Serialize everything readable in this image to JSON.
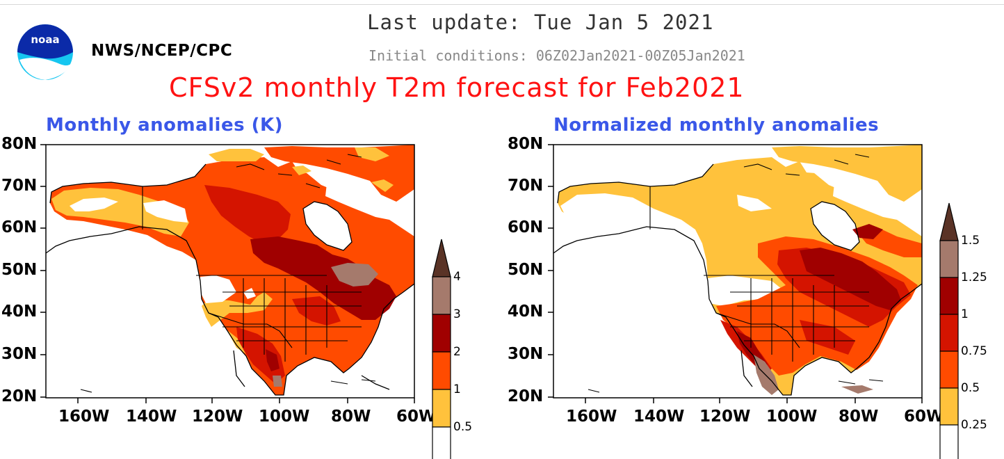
{
  "header": {
    "agency": "NWS/NCEP/CPC",
    "logo_text": "noaa",
    "last_update": "Last update: Tue Jan 5 2021",
    "initial_conditions": "Initial conditions: 06Z02Jan2021-00Z05Jan2021",
    "title": "CFSv2 monthly T2m forecast for Feb2021"
  },
  "panels": [
    {
      "subtitle": "Monthly anomalies (K)",
      "lat_labels": [
        "80N",
        "70N",
        "60N",
        "50N",
        "40N",
        "30N",
        "20N"
      ],
      "lon_labels": [
        "160W",
        "140W",
        "120W",
        "100W",
        "80W",
        "60W"
      ],
      "colorbar_labels": [
        "0.5",
        "1",
        "2",
        "3",
        "4"
      ]
    },
    {
      "subtitle": "Normalized monthly anomalies",
      "lat_labels": [
        "80N",
        "70N",
        "60N",
        "50N",
        "40N",
        "30N",
        "20N"
      ],
      "lon_labels": [
        "160W",
        "140W",
        "120W",
        "100W",
        "80W",
        "60W"
      ],
      "colorbar_labels": [
        "0.25",
        "0.5",
        "0.75",
        "1",
        "1.25",
        "1.5"
      ]
    }
  ],
  "colors": {
    "white": "#ffffff",
    "yellow": "#ffc23c",
    "orange": "#ff4b00",
    "red": "#d41400",
    "darkred": "#a00000",
    "mauve": "#a57a6c",
    "brown": "#5a3326",
    "title_red": "#ff1212",
    "subtitle_blue": "#3a57e8"
  }
}
